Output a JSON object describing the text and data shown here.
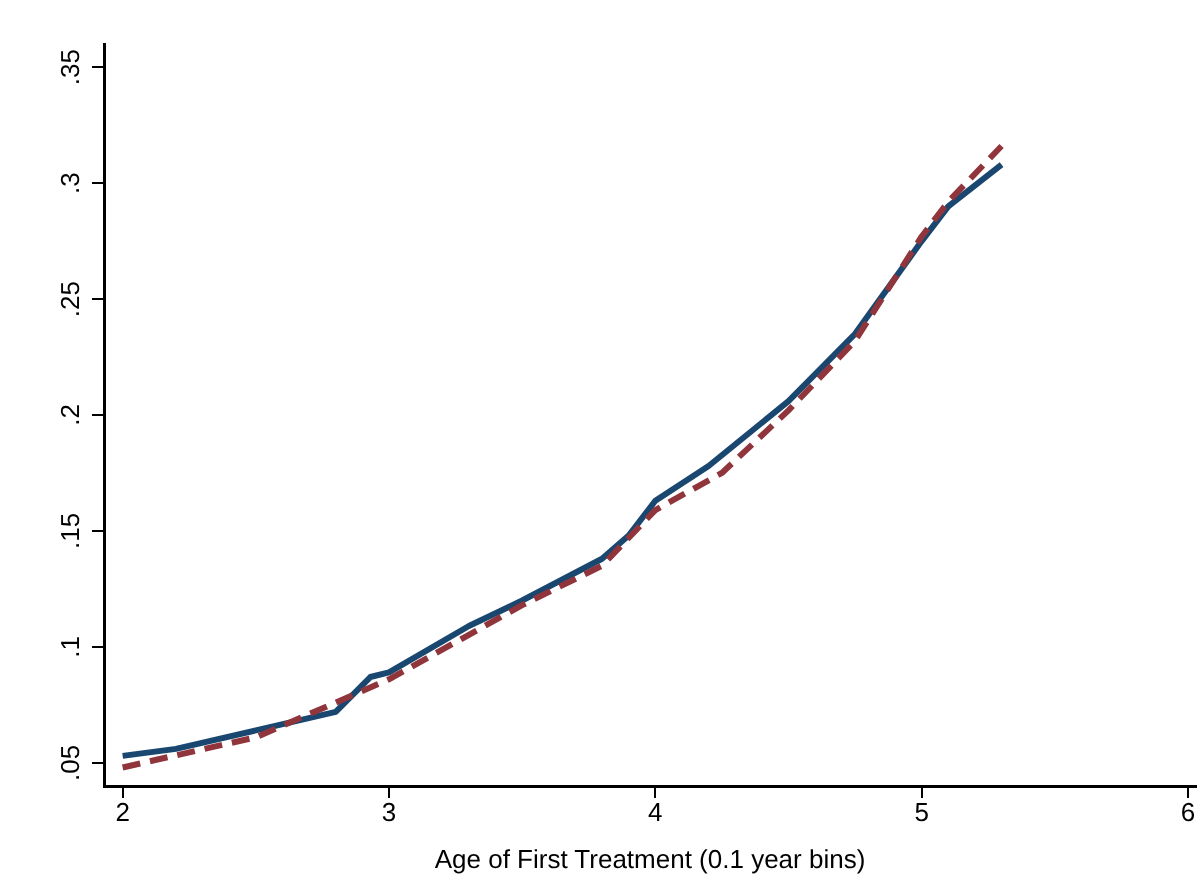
{
  "chart_data": {
    "type": "line",
    "xlabel": "Age of First Treatment (0.1 year bins)",
    "xlim": [
      1.93,
      6.03
    ],
    "ylim": [
      0.04,
      0.36
    ],
    "xticks": [
      2,
      3,
      4,
      5,
      6
    ],
    "yticks": [
      {
        "value": 0.05,
        "label": ".05"
      },
      {
        "value": 0.1,
        "label": ".1"
      },
      {
        "value": 0.15,
        "label": ".15"
      },
      {
        "value": 0.2,
        "label": ".2"
      },
      {
        "value": 0.25,
        "label": ".25"
      },
      {
        "value": 0.3,
        "label": ".3"
      },
      {
        "value": 0.35,
        "label": ".35"
      }
    ],
    "grid": false,
    "legend": false,
    "marker": "none",
    "series": [
      {
        "color": "#1a476f",
        "line_style": "solid",
        "x": [
          2,
          2.2,
          2.5,
          2.8,
          2.93,
          3,
          3.3,
          3.5,
          3.8,
          3.9,
          4,
          4.2,
          4.5,
          4.75,
          5,
          5.1,
          5.3
        ],
        "values": [
          0.053,
          0.056,
          0.064,
          0.072,
          0.087,
          0.089,
          0.109,
          0.12,
          0.138,
          0.148,
          0.163,
          0.178,
          0.206,
          0.235,
          0.275,
          0.29,
          0.308
        ]
      },
      {
        "color": "#90353b",
        "line_style": "dashed",
        "x": [
          2,
          2.5,
          3,
          3.5,
          3.8,
          4,
          4.25,
          4.5,
          4.75,
          5,
          5.1,
          5.3
        ],
        "values": [
          0.048,
          0.061,
          0.086,
          0.118,
          0.135,
          0.159,
          0.175,
          0.202,
          0.232,
          0.277,
          0.292,
          0.316
        ]
      }
    ]
  }
}
